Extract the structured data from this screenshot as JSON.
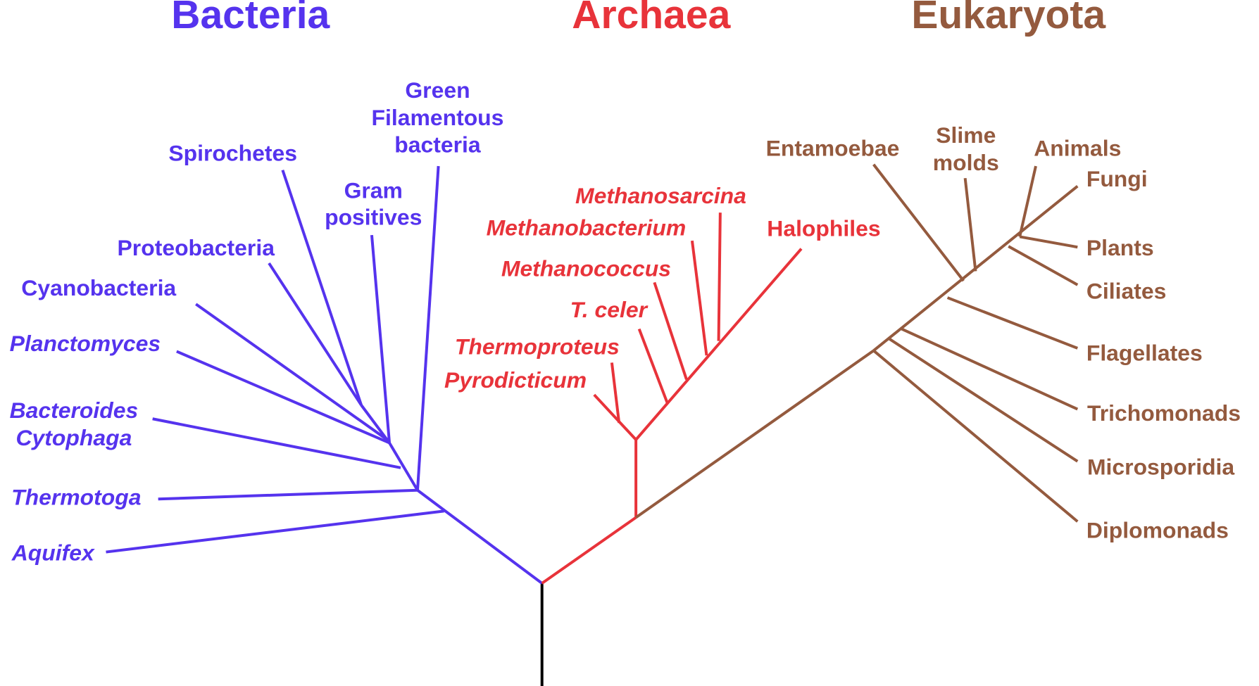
{
  "domains": [
    {
      "title": "Bacteria",
      "groups": [
        [
          "Green",
          "Filamentous",
          "bacteria"
        ],
        [
          "Spirochetes"
        ],
        [
          "Gram",
          "positives"
        ],
        [
          "Proteobacteria"
        ],
        [
          "Cyanobacteria"
        ],
        [
          "Planctomyces"
        ],
        [
          "Bacteroides",
          "Cytophaga"
        ],
        [
          "Thermotoga"
        ],
        [
          "Aquifex"
        ]
      ]
    },
    {
      "title": "Archaea",
      "groups": [
        [
          "Methanosarcina"
        ],
        [
          "Methanobacterium"
        ],
        [
          "Halophiles"
        ],
        [
          "Methanococcus"
        ],
        [
          "T. celer"
        ],
        [
          "Thermoproteus"
        ],
        [
          "Pyrodicticum"
        ]
      ]
    },
    {
      "title": "Eukaryota",
      "groups": [
        [
          "Entamoebae"
        ],
        [
          "Slime",
          "molds"
        ],
        [
          "Animals"
        ],
        [
          "Fungi"
        ],
        [
          "Plants"
        ],
        [
          "Ciliates"
        ],
        [
          "Flagellates"
        ],
        [
          "Trichomonads"
        ],
        [
          "Microsporidia"
        ],
        [
          "Diplomonads"
        ]
      ]
    }
  ]
}
